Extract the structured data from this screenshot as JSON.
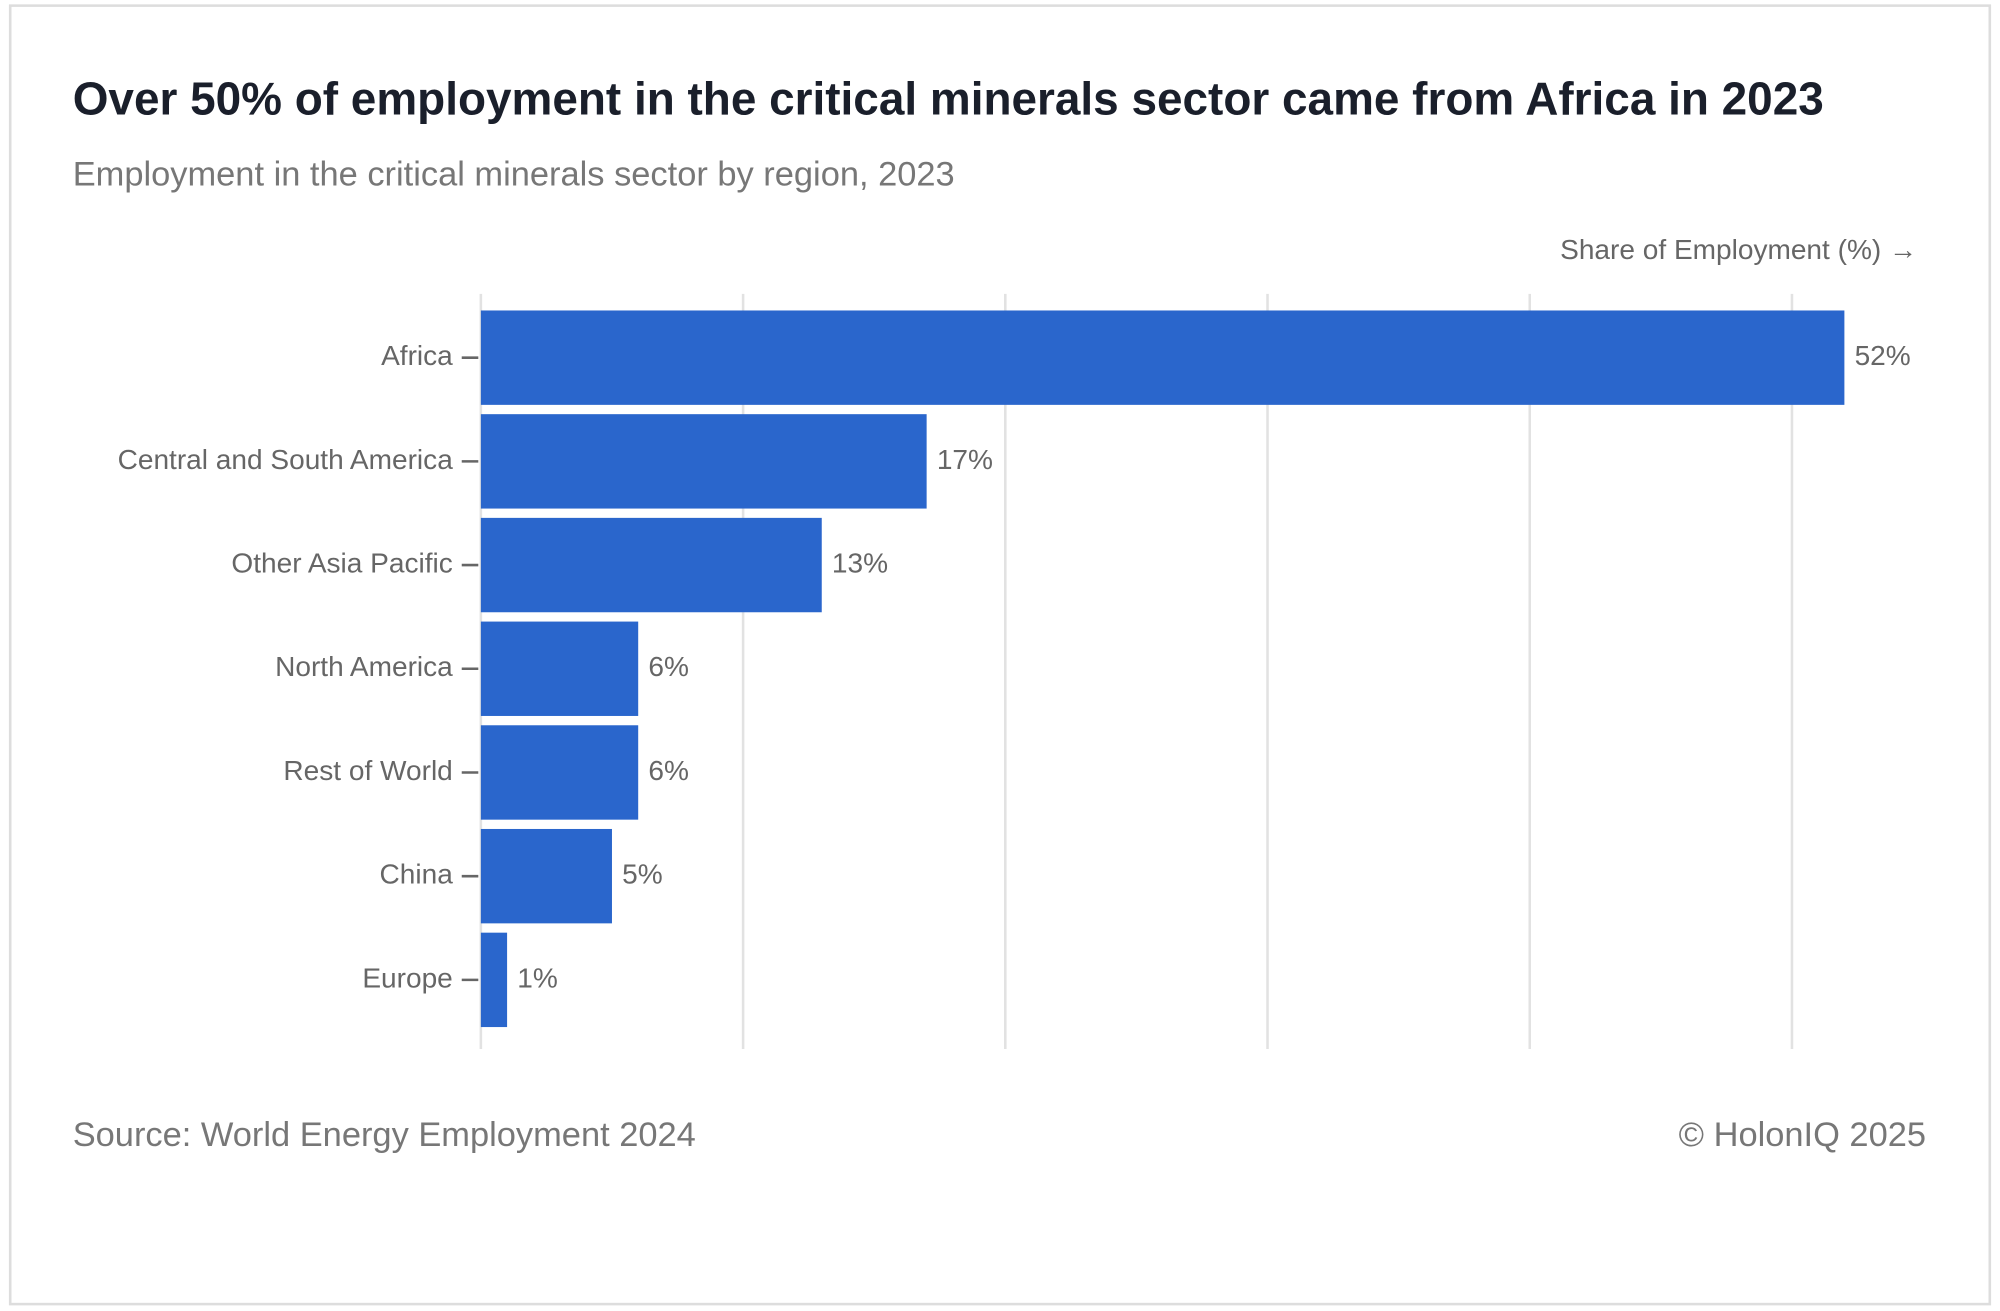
{
  "chart_data": {
    "type": "bar",
    "orientation": "horizontal",
    "title": "Over 50% of employment in the critical minerals sector came from Africa in 2023",
    "subtitle": "Employment in the critical minerals sector by region, 2023",
    "x_label": "Share of Employment (%) →",
    "categories": [
      "Africa",
      "Central and South America",
      "Other Asia Pacific",
      "North America",
      "Rest of World",
      "China",
      "Europe"
    ],
    "values": [
      52,
      17,
      13,
      6,
      6,
      5,
      1
    ],
    "value_labels": [
      "52%",
      "17%",
      "13%",
      "6%",
      "6%",
      "5%",
      "1%"
    ],
    "color": "#2a66cc",
    "xlim": [
      0,
      52
    ],
    "xticks": [
      0,
      10,
      20,
      30,
      40,
      50
    ],
    "grid": true,
    "source": "Source: World Energy Employment 2024",
    "copyright": "© HolonIQ 2025"
  }
}
